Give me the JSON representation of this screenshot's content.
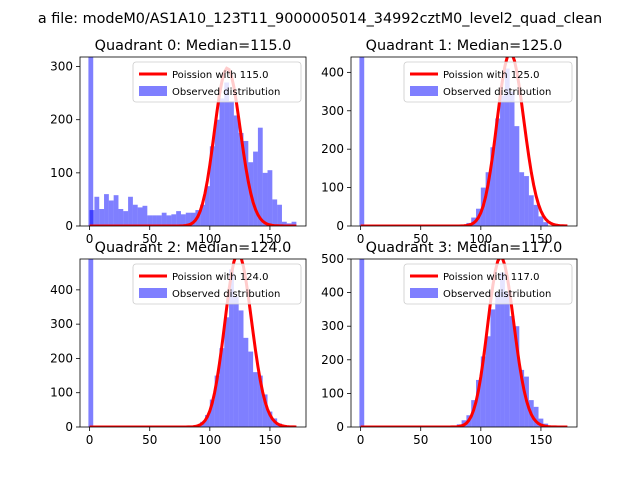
{
  "figure_title": "a file: modeM0/AS1A10_123T11_9000005014_34992cztM0_level2_quad_clean",
  "chart_data": [
    {
      "type": "histogram+line",
      "title": "Quadrant 0: Median=115.0",
      "xlim": [
        -8,
        180
      ],
      "ylim": [
        0,
        318
      ],
      "xticks": [
        0,
        50,
        100,
        150
      ],
      "yticks": [
        0,
        100,
        200,
        300
      ],
      "median": 115.0,
      "mask_bin_x": 1,
      "mask_bin_height": 318,
      "bin_width": 4,
      "hist_x": [
        2,
        6,
        10,
        14,
        18,
        22,
        26,
        30,
        34,
        38,
        42,
        46,
        50,
        54,
        58,
        62,
        66,
        70,
        74,
        78,
        82,
        86,
        90,
        94,
        98,
        102,
        106,
        110,
        114,
        118,
        122,
        126,
        130,
        134,
        138,
        142,
        146,
        150,
        154,
        158,
        162,
        166,
        170
      ],
      "hist_values": [
        30,
        55,
        32,
        60,
        48,
        58,
        32,
        28,
        55,
        40,
        35,
        38,
        20,
        20,
        20,
        25,
        20,
        22,
        28,
        22,
        25,
        25,
        30,
        40,
        75,
        150,
        200,
        240,
        270,
        235,
        208,
        175,
        160,
        120,
        140,
        185,
        100,
        105,
        50,
        40,
        8,
        5,
        8
      ],
      "legend_line": "Poission with 115.0",
      "legend_bar": "Observed distribution"
    },
    {
      "type": "histogram+line",
      "title": "Quadrant 1: Median=125.0",
      "xlim": [
        -8,
        180
      ],
      "ylim": [
        0,
        440
      ],
      "xticks": [
        0,
        50,
        100,
        150
      ],
      "yticks": [
        0,
        100,
        200,
        300,
        400
      ],
      "median": 125.0,
      "mask_bin_x": 1,
      "mask_bin_height": 440,
      "bin_width": 4,
      "hist_x": [
        90,
        94,
        98,
        102,
        106,
        110,
        114,
        118,
        122,
        126,
        130,
        134,
        138,
        142,
        146,
        150,
        154
      ],
      "hist_values": [
        8,
        22,
        45,
        100,
        140,
        205,
        280,
        340,
        410,
        350,
        260,
        140,
        130,
        80,
        55,
        25,
        10
      ],
      "legend_line": "Poission with 125.0",
      "legend_bar": "Observed distribution"
    },
    {
      "type": "histogram+line",
      "title": "Quadrant 2: Median=124.0",
      "xlim": [
        -8,
        180
      ],
      "ylim": [
        0,
        490
      ],
      "xticks": [
        0,
        50,
        100,
        150
      ],
      "yticks": [
        0,
        100,
        200,
        300,
        400
      ],
      "median": 124.0,
      "mask_bin_x": 1,
      "mask_bin_height": 490,
      "bin_width": 4,
      "hist_x": [
        94,
        98,
        102,
        106,
        110,
        114,
        118,
        122,
        126,
        130,
        134,
        138,
        142,
        146,
        150,
        154,
        158
      ],
      "hist_values": [
        15,
        35,
        80,
        150,
        230,
        320,
        460,
        380,
        340,
        260,
        220,
        160,
        150,
        95,
        45,
        25,
        10
      ],
      "legend_line": "Poission with 124.0",
      "legend_bar": "Observed distribution"
    },
    {
      "type": "histogram+line",
      "title": "Quadrant 3: Median=117.0",
      "xlim": [
        -8,
        180
      ],
      "ylim": [
        0,
        500
      ],
      "xticks": [
        0,
        50,
        100,
        150
      ],
      "yticks": [
        0,
        100,
        200,
        300,
        400,
        500
      ],
      "median": 117.0,
      "mask_bin_x": 1,
      "mask_bin_height": 500,
      "bin_width": 4,
      "hist_x": [
        82,
        86,
        90,
        94,
        98,
        102,
        106,
        110,
        114,
        118,
        122,
        126,
        130,
        134,
        138,
        142,
        146,
        150,
        154
      ],
      "hist_values": [
        8,
        20,
        35,
        80,
        140,
        210,
        270,
        350,
        400,
        460,
        400,
        330,
        300,
        170,
        150,
        80,
        60,
        25,
        10
      ],
      "legend_line": "Poission with 117.0",
      "legend_bar": "Observed distribution"
    }
  ]
}
